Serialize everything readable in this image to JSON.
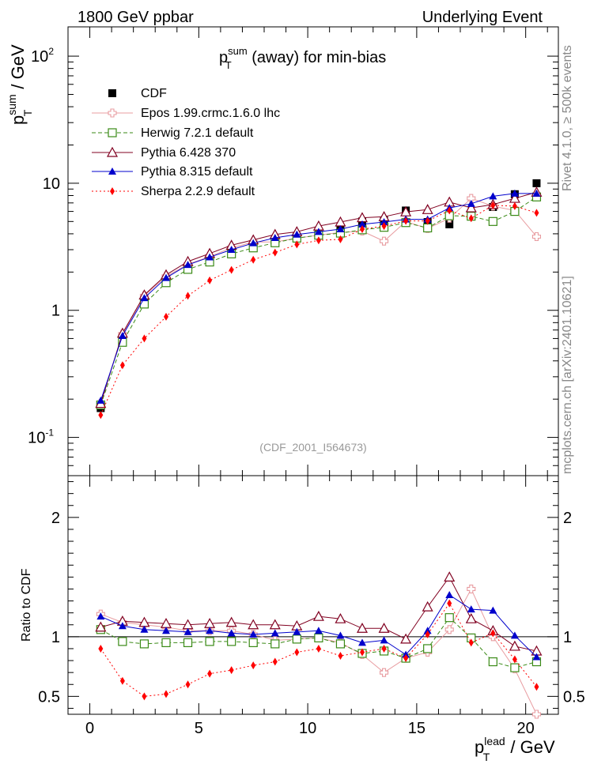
{
  "header": {
    "left": "1800 GeV ppbar",
    "right": "Underlying Event",
    "side_rivet": "Rivet 4.1.0, ≥ 500k events",
    "side_url": "mcplots.cern.ch [arXiv:2401.10621]"
  },
  "chart_data": {
    "type": "line",
    "title_base": "p",
    "title_sup": "sum",
    "title_sub": "T",
    "title_rest": " (away) for min-bias",
    "ylabel_base": "p",
    "ylabel_sup": "sum",
    "ylabel_sub": "T",
    "ylabel_rest": " / GeV",
    "xlabel_base": "p",
    "xlabel_sup": "lead",
    "xlabel_sub": "T",
    "xlabel_rest": " / GeV",
    "ratio_ylabel": "Ratio to CDF",
    "analysis_tag": "(CDF_2001_I564673)",
    "yscale": "log",
    "xlim": [
      -1,
      21.5
    ],
    "ylim": [
      0.05,
      170
    ],
    "ratio_ylim": [
      0.35,
      2.35
    ],
    "x_ticks": [
      "0",
      "5",
      "10",
      "15",
      "20"
    ],
    "y_ticks": [
      "10",
      "1",
      "10"
    ],
    "y_tick_exps": [
      "-1",
      "",
      "2"
    ],
    "ratio_y_ticks": [
      "0.5",
      "1",
      "2"
    ],
    "x": [
      0.5,
      1.5,
      2.5,
      3.5,
      4.5,
      5.5,
      6.5,
      7.5,
      8.5,
      9.5,
      10.5,
      11.5,
      12.5,
      13.5,
      14.5,
      15.5,
      16.5,
      17.5,
      18.5,
      19.5,
      20.5
    ],
    "series": [
      {
        "name": "CDF",
        "color": "#000000",
        "marker": "square-filled",
        "dash": "none",
        "values": [
          0.17,
          0.58,
          1.18,
          1.72,
          2.2,
          2.5,
          2.9,
          3.3,
          3.6,
          3.8,
          3.95,
          4.3,
          5.0,
          5.1,
          6.1,
          4.95,
          4.75,
          5.6,
          6.5,
          8.2,
          10.0
        ]
      },
      {
        "name": "Epos 1.99.crmc.1.6.0 lhc",
        "color": "#e89ca0",
        "marker": "cross-open",
        "dash": "solid",
        "values": [
          0.185,
          0.65,
          1.3,
          1.85,
          2.3,
          2.65,
          3.1,
          3.45,
          3.45,
          3.7,
          3.9,
          4.1,
          4.2,
          3.5,
          5.0,
          4.4,
          5.3,
          7.6,
          6.6,
          6.1,
          3.8
        ]
      },
      {
        "name": "Herwig 7.2.1 default",
        "color": "#3a8a16",
        "marker": "square-open",
        "dash": "dashed",
        "values": [
          0.18,
          0.56,
          1.12,
          1.65,
          2.1,
          2.4,
          2.78,
          3.1,
          3.4,
          3.7,
          3.9,
          4.05,
          4.3,
          4.5,
          4.9,
          4.45,
          5.55,
          5.5,
          5.0,
          6.0,
          7.8
        ]
      },
      {
        "name": "Pythia 6.428 370",
        "color": "#800020",
        "marker": "triangle-open",
        "dash": "solid",
        "values": [
          0.185,
          0.66,
          1.32,
          1.9,
          2.42,
          2.8,
          3.25,
          3.58,
          3.95,
          4.15,
          4.6,
          4.95,
          5.35,
          5.45,
          5.95,
          6.2,
          7.1,
          6.4,
          6.8,
          7.6,
          8.5
        ]
      },
      {
        "name": "Pythia 8.315 default",
        "color": "#0000cc",
        "marker": "triangle-filled",
        "dash": "solid",
        "values": [
          0.195,
          0.63,
          1.25,
          1.8,
          2.28,
          2.62,
          3.0,
          3.38,
          3.72,
          3.95,
          4.15,
          4.35,
          4.75,
          4.95,
          5.2,
          5.2,
          6.4,
          6.9,
          7.9,
          8.3,
          8.3
        ]
      },
      {
        "name": "Sherpa 2.2.9 default",
        "color": "#ff0000",
        "marker": "diamond-filled",
        "dash": "dotted",
        "values": [
          0.15,
          0.37,
          0.6,
          0.89,
          1.3,
          1.72,
          2.08,
          2.5,
          2.85,
          3.3,
          3.55,
          3.62,
          4.35,
          4.6,
          5.05,
          5.05,
          6.1,
          5.3,
          6.7,
          6.6,
          5.85
        ]
      }
    ],
    "ratios": [
      {
        "name": "Epos 1.99.crmc.1.6.0 lhc",
        "values": [
          1.19,
          1.12,
          1.1,
          1.08,
          1.05,
          1.05,
          1.05,
          1.02,
          0.97,
          0.98,
          0.99,
          0.95,
          0.85,
          0.7,
          0.82,
          0.87,
          1.06,
          1.4,
          1.0,
          0.73,
          0.35
        ]
      },
      {
        "name": "Herwig 7.2.1 default",
        "values": [
          1.06,
          0.96,
          0.94,
          0.95,
          0.95,
          0.96,
          0.96,
          0.95,
          0.94,
          0.98,
          0.99,
          0.94,
          0.86,
          0.88,
          0.82,
          0.9,
          1.16,
          0.99,
          0.79,
          0.74,
          0.79
        ]
      },
      {
        "name": "Pythia 6.428 370",
        "values": [
          1.08,
          1.13,
          1.12,
          1.11,
          1.1,
          1.11,
          1.12,
          1.1,
          1.1,
          1.09,
          1.17,
          1.15,
          1.07,
          1.07,
          0.98,
          1.25,
          1.5,
          1.15,
          1.05,
          0.92,
          0.88
        ]
      },
      {
        "name": "Pythia 8.315 default",
        "values": [
          1.17,
          1.09,
          1.06,
          1.05,
          1.04,
          1.05,
          1.03,
          1.02,
          1.03,
          1.04,
          1.05,
          1.01,
          0.95,
          0.97,
          0.85,
          1.05,
          1.35,
          1.23,
          1.22,
          1.01,
          0.83
        ]
      },
      {
        "name": "Sherpa 2.2.9 default",
        "values": [
          0.9,
          0.63,
          0.5,
          0.52,
          0.6,
          0.69,
          0.72,
          0.76,
          0.79,
          0.87,
          0.9,
          0.84,
          0.87,
          0.9,
          0.82,
          1.02,
          1.28,
          0.95,
          1.03,
          0.81,
          0.58
        ]
      }
    ]
  }
}
